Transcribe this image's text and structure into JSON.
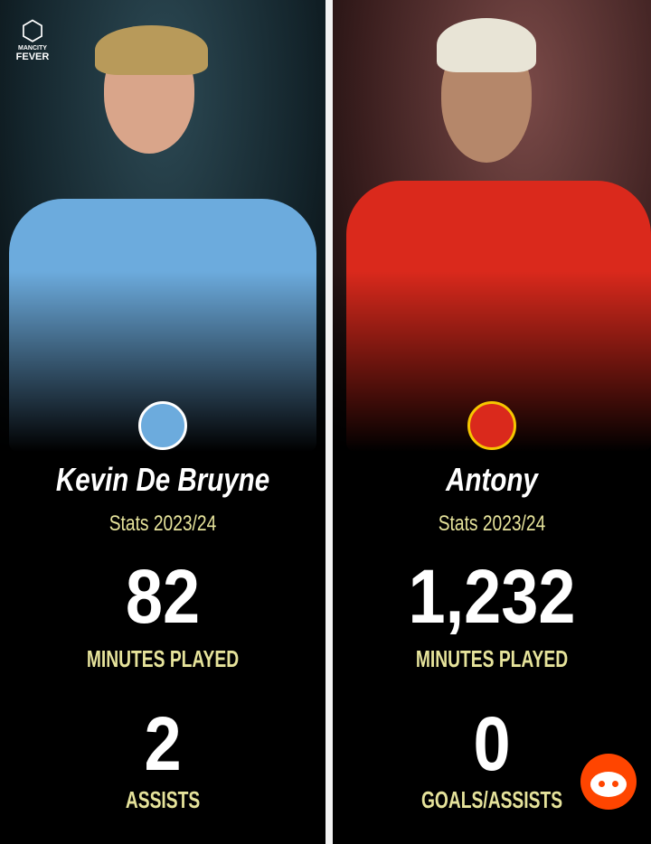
{
  "logo": {
    "line1": "MANCITY",
    "line2": "FEVER"
  },
  "players": [
    {
      "name": "Kevin De Bruyne",
      "season": "Stats 2023/24",
      "stat1_value": "82",
      "stat1_label": "MINUTES PLAYED",
      "stat2_value": "2",
      "stat2_label": "ASSISTS",
      "club_color": "#6cabdd"
    },
    {
      "name": "Antony",
      "season": "Stats 2023/24",
      "stat1_value": "1,232",
      "stat1_label": "MINUTES PLAYED",
      "stat2_value": "0",
      "stat2_label": "GOALS/ASSISTS",
      "club_color": "#da291c"
    }
  ],
  "colors": {
    "label": "#e6e39b",
    "background": "#000000",
    "reddit": "#ff4500"
  },
  "icons": {
    "watermark": "reddit-icon"
  }
}
